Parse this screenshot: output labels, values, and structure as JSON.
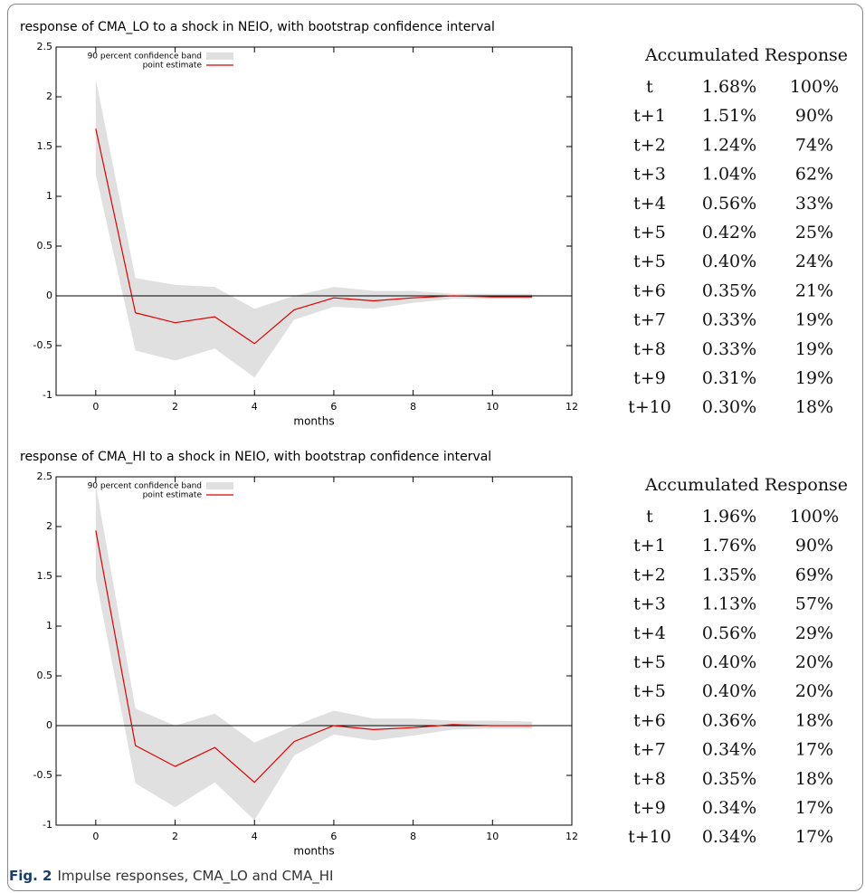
{
  "chart_data": [
    {
      "type": "line",
      "title": "response of CMA_LO to a shock in NEIO, with bootstrap confidence interval",
      "x_label": "months",
      "x": [
        0,
        1,
        2,
        3,
        4,
        5,
        6,
        7,
        8,
        9,
        10,
        11
      ],
      "band": {
        "name": "90 percent confidence band",
        "color": "#e0e0e0",
        "upper": [
          2.18,
          0.18,
          0.11,
          0.09,
          -0.13,
          0.0,
          0.09,
          0.05,
          0.05,
          0.02,
          0.02,
          0.02
        ],
        "lower": [
          1.22,
          -0.55,
          -0.65,
          -0.53,
          -0.82,
          -0.24,
          -0.11,
          -0.13,
          -0.07,
          -0.03,
          -0.03,
          -0.03
        ]
      },
      "series": [
        {
          "name": "point estimate",
          "color": "#e00000",
          "values": [
            1.68,
            -0.17,
            -0.27,
            -0.21,
            -0.48,
            -0.14,
            -0.02,
            -0.05,
            -0.02,
            0.0,
            -0.01,
            -0.01
          ]
        }
      ],
      "xlim": [
        -1,
        12
      ],
      "xticks": [
        0,
        2,
        4,
        6,
        8,
        10,
        12
      ],
      "ylim": [
        -1,
        2.5
      ],
      "yticks": [
        -1,
        -0.5,
        0,
        0.5,
        1,
        1.5,
        2,
        2.5
      ],
      "zero_line": true,
      "legend": "upper left"
    },
    {
      "type": "line",
      "title": "response of CMA_HI to a shock in NEIO, with bootstrap confidence interval",
      "x_label": "months",
      "x": [
        0,
        1,
        2,
        3,
        4,
        5,
        6,
        7,
        8,
        9,
        10,
        11
      ],
      "band": {
        "name": "90 percent confidence band",
        "color": "#e0e0e0",
        "upper": [
          2.42,
          0.17,
          0.0,
          0.12,
          -0.17,
          0.0,
          0.15,
          0.07,
          0.07,
          0.05,
          0.05,
          0.04
        ],
        "lower": [
          1.48,
          -0.58,
          -0.82,
          -0.57,
          -0.95,
          -0.3,
          -0.09,
          -0.15,
          -0.1,
          -0.04,
          -0.03,
          -0.03
        ]
      },
      "series": [
        {
          "name": "point estimate",
          "color": "#e00000",
          "values": [
            1.96,
            -0.2,
            -0.41,
            -0.22,
            -0.57,
            -0.16,
            0.0,
            -0.04,
            -0.02,
            0.01,
            0.0,
            0.0
          ]
        }
      ],
      "xlim": [
        -1,
        12
      ],
      "xticks": [
        0,
        2,
        4,
        6,
        8,
        10,
        12
      ],
      "ylim": [
        -1,
        2.5
      ],
      "yticks": [
        -1,
        -0.5,
        0,
        0.5,
        1,
        1.5,
        2,
        2.5
      ],
      "zero_line": true,
      "legend": "upper left"
    }
  ],
  "tables": [
    {
      "header": "Accumulated Response",
      "rows": [
        [
          "t",
          "1.68%",
          "100%"
        ],
        [
          "t+1",
          "1.51%",
          "90%"
        ],
        [
          "t+2",
          "1.24%",
          "74%"
        ],
        [
          "t+3",
          "1.04%",
          "62%"
        ],
        [
          "t+4",
          "0.56%",
          "33%"
        ],
        [
          "t+5",
          "0.42%",
          "25%"
        ],
        [
          "t+5",
          "0.40%",
          "24%"
        ],
        [
          "t+6",
          "0.35%",
          "21%"
        ],
        [
          "t+7",
          "0.33%",
          "19%"
        ],
        [
          "t+8",
          "0.33%",
          "19%"
        ],
        [
          "t+9",
          "0.31%",
          "19%"
        ],
        [
          "t+10",
          "0.30%",
          "18%"
        ]
      ]
    },
    {
      "header": "Accumulated Response",
      "rows": [
        [
          "t",
          "1.96%",
          "100%"
        ],
        [
          "t+1",
          "1.76%",
          "90%"
        ],
        [
          "t+2",
          "1.35%",
          "69%"
        ],
        [
          "t+3",
          "1.13%",
          "57%"
        ],
        [
          "t+4",
          "0.56%",
          "29%"
        ],
        [
          "t+5",
          "0.40%",
          "20%"
        ],
        [
          "t+5",
          "0.40%",
          "20%"
        ],
        [
          "t+6",
          "0.36%",
          "18%"
        ],
        [
          "t+7",
          "0.34%",
          "17%"
        ],
        [
          "t+8",
          "0.35%",
          "18%"
        ],
        [
          "t+9",
          "0.34%",
          "17%"
        ],
        [
          "t+10",
          "0.34%",
          "17%"
        ]
      ]
    }
  ],
  "caption": {
    "label": "Fig. 2",
    "text": "Impulse responses, CMA_LO and CMA_HI"
  }
}
